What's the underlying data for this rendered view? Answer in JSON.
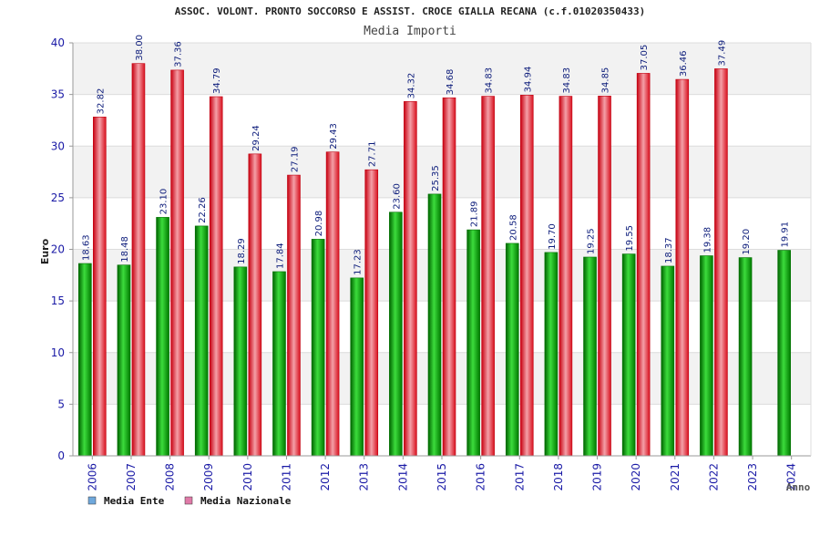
{
  "chart_data": {
    "type": "bar",
    "title": "ASSOC. VOLONT. PRONTO SOCCORSO E ASSIST. CROCE GIALLA RECANA (c.f.01020350433)",
    "subtitle": "Media Importi",
    "ylabel": "Euro",
    "xlabel": "Anno",
    "ylim": [
      0,
      40
    ],
    "yticks": [
      0,
      5,
      10,
      15,
      20,
      25,
      30,
      35,
      40
    ],
    "grid": true,
    "legend_position": "bottom-left",
    "categories": [
      "2006",
      "2007",
      "2008",
      "2009",
      "2010",
      "2011",
      "2012",
      "2013",
      "2014",
      "2015",
      "2016",
      "2017",
      "2018",
      "2019",
      "2020",
      "2021",
      "2022",
      "2023",
      "2024"
    ],
    "series": [
      {
        "name": "Media Ente",
        "color": "#00b000",
        "legend_color": "#6fa8dc",
        "values": [
          18.63,
          18.48,
          23.1,
          22.26,
          18.29,
          17.84,
          20.98,
          17.23,
          23.6,
          25.35,
          21.89,
          20.58,
          19.7,
          19.25,
          19.55,
          18.37,
          19.38,
          19.2,
          19.91
        ],
        "labels": [
          "18.63",
          "18.48",
          "23.10",
          "22.26",
          "18.29",
          "17.84",
          "20.98",
          "17.23",
          "23.60",
          "25.35",
          "21.89",
          "20.58",
          "19.70",
          "19.25",
          "19.55",
          "18.37",
          "19.38",
          "19.20",
          "19.91"
        ]
      },
      {
        "name": "Media Nazionale",
        "color": "#e8202a",
        "legend_color": "#e07aa8",
        "values": [
          32.82,
          38.0,
          37.36,
          34.79,
          29.24,
          27.19,
          29.43,
          27.71,
          34.32,
          34.68,
          34.83,
          34.94,
          34.83,
          34.85,
          37.05,
          36.46,
          37.49,
          null,
          null
        ],
        "labels": [
          "32.82",
          "38.00",
          "37.36",
          "34.79",
          "29.24",
          "27.19",
          "29.43",
          "27.71",
          "34.32",
          "34.68",
          "34.83",
          "34.94",
          "34.83",
          "34.85",
          "37.05",
          "36.46",
          "37.49",
          null,
          null
        ]
      }
    ]
  }
}
